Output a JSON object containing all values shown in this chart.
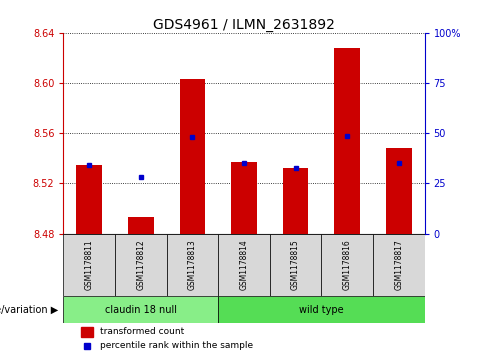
{
  "title": "GDS4961 / ILMN_2631892",
  "samples": [
    "GSM1178811",
    "GSM1178812",
    "GSM1178813",
    "GSM1178814",
    "GSM1178815",
    "GSM1178816",
    "GSM1178817"
  ],
  "bar_base": 8.48,
  "transformed_counts": [
    8.535,
    8.493,
    8.603,
    8.537,
    8.532,
    8.628,
    8.548
  ],
  "percentile_values": [
    8.535,
    8.525,
    8.557,
    8.536,
    8.532,
    8.558,
    8.536
  ],
  "ylim": [
    8.48,
    8.64
  ],
  "yticks": [
    8.48,
    8.52,
    8.56,
    8.6,
    8.64
  ],
  "right_yticks": [
    0,
    25,
    50,
    75,
    100
  ],
  "right_ytick_positions": [
    8.48,
    8.52,
    8.56,
    8.6,
    8.64
  ],
  "bar_color": "#cc0000",
  "percentile_color": "#0000cc",
  "bar_width": 0.5,
  "groups": [
    {
      "label": "claudin 18 null",
      "indices": [
        0,
        1,
        2
      ],
      "color": "#88ee88"
    },
    {
      "label": "wild type",
      "indices": [
        3,
        4,
        5,
        6
      ],
      "color": "#55dd55"
    }
  ],
  "group_label": "genotype/variation",
  "legend_labels": [
    "transformed count",
    "percentile rank within the sample"
  ],
  "legend_colors": [
    "#cc0000",
    "#0000cc"
  ],
  "left_axis_color": "#cc0000",
  "right_axis_color": "#0000cc",
  "background_color": "#ffffff",
  "tick_label_size": 7,
  "title_fontsize": 10,
  "sample_box_color": "#d8d8d8",
  "grid_color": "#000000"
}
